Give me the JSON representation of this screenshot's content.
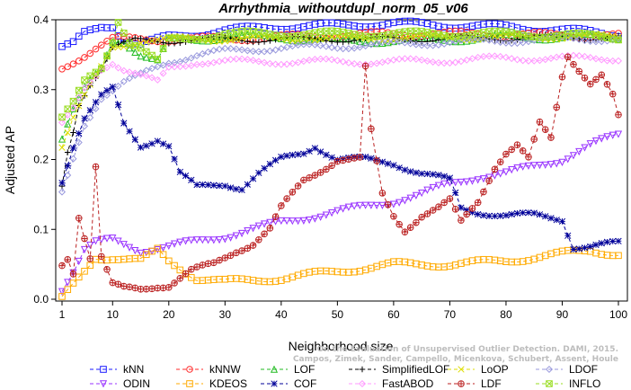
{
  "chart_data": {
    "type": "line",
    "title": "Arrhythmia_withoutdupl_norm_05_v06",
    "xlabel": "Neighborhood size",
    "ylabel": "Adjusted AP",
    "xlim": [
      1,
      100
    ],
    "ylim": [
      0.0,
      0.4
    ],
    "xticks": [
      1,
      10,
      20,
      30,
      40,
      50,
      60,
      70,
      80,
      90,
      100
    ],
    "yticks": [
      0.0,
      0.1,
      0.2,
      0.3,
      0.4
    ],
    "watermark": [
      "Campos, Zimek, Sander, Campello, Micenkova, Schubert, Assent, Houle",
      "On the Evaluation of Unsupervised Outlier Detection. DAMI, 2015."
    ],
    "legend_position": "bottom",
    "series": [
      {
        "name": "kNN",
        "color": "#1a1aff",
        "marker": "square",
        "dash": "4,3",
        "x_start": 1,
        "x_end": 100,
        "keypoints": [
          [
            1,
            0.36
          ],
          [
            3,
            0.365
          ],
          [
            5,
            0.38
          ],
          [
            8,
            0.39
          ],
          [
            10,
            0.392
          ],
          [
            12,
            0.37
          ],
          [
            15,
            0.365
          ],
          [
            20,
            0.375
          ],
          [
            25,
            0.38
          ],
          [
            30,
            0.385
          ],
          [
            40,
            0.39
          ],
          [
            50,
            0.392
          ],
          [
            60,
            0.395
          ],
          [
            70,
            0.392
          ],
          [
            80,
            0.39
          ],
          [
            90,
            0.385
          ],
          [
            100,
            0.38
          ]
        ]
      },
      {
        "name": "kNNW",
        "color": "#ff2a2a",
        "marker": "circle",
        "dash": "4,3",
        "x_start": 1,
        "x_end": 100,
        "keypoints": [
          [
            1,
            0.33
          ],
          [
            4,
            0.345
          ],
          [
            7,
            0.36
          ],
          [
            10,
            0.372
          ],
          [
            20,
            0.372
          ],
          [
            30,
            0.373
          ],
          [
            40,
            0.375
          ],
          [
            50,
            0.378
          ],
          [
            60,
            0.38
          ],
          [
            70,
            0.38
          ],
          [
            80,
            0.379
          ],
          [
            90,
            0.378
          ],
          [
            100,
            0.377
          ]
        ]
      },
      {
        "name": "LOF",
        "color": "#22bb22",
        "marker": "triangle",
        "dash": "4,3",
        "x_start": 1,
        "x_end": 100,
        "keypoints": [
          [
            1,
            0.23
          ],
          [
            3,
            0.27
          ],
          [
            5,
            0.3
          ],
          [
            8,
            0.33
          ],
          [
            10,
            0.37
          ],
          [
            12,
            0.37
          ],
          [
            15,
            0.35
          ],
          [
            18,
            0.34
          ],
          [
            20,
            0.37
          ],
          [
            30,
            0.375
          ],
          [
            40,
            0.375
          ],
          [
            50,
            0.37
          ],
          [
            60,
            0.37
          ],
          [
            70,
            0.372
          ],
          [
            80,
            0.375
          ],
          [
            90,
            0.375
          ],
          [
            100,
            0.375
          ]
        ]
      },
      {
        "name": "SimplifiedLOF",
        "color": "#000000",
        "marker": "plus",
        "dash": "4,3",
        "x_start": 1,
        "x_end": 100,
        "keypoints": [
          [
            1,
            0.16
          ],
          [
            2,
            0.21
          ],
          [
            3,
            0.24
          ],
          [
            4,
            0.28
          ],
          [
            6,
            0.31
          ],
          [
            8,
            0.33
          ],
          [
            10,
            0.36
          ],
          [
            14,
            0.37
          ],
          [
            20,
            0.37
          ],
          [
            30,
            0.372
          ],
          [
            40,
            0.372
          ],
          [
            50,
            0.372
          ],
          [
            60,
            0.372
          ],
          [
            70,
            0.373
          ],
          [
            80,
            0.374
          ],
          [
            90,
            0.375
          ],
          [
            100,
            0.375
          ]
        ]
      },
      {
        "name": "LoOP",
        "color": "#dddd00",
        "marker": "x",
        "dash": "4,3",
        "x_start": 1,
        "x_end": 100,
        "keypoints": [
          [
            1,
            0.22
          ],
          [
            3,
            0.26
          ],
          [
            5,
            0.29
          ],
          [
            8,
            0.33
          ],
          [
            10,
            0.36
          ],
          [
            15,
            0.37
          ],
          [
            20,
            0.372
          ],
          [
            30,
            0.373
          ],
          [
            40,
            0.373
          ],
          [
            50,
            0.373
          ],
          [
            60,
            0.374
          ],
          [
            70,
            0.375
          ],
          [
            80,
            0.375
          ],
          [
            90,
            0.376
          ],
          [
            100,
            0.376
          ]
        ]
      },
      {
        "name": "LDOF",
        "color": "#9999dd",
        "marker": "diamond",
        "dash": "4,3",
        "x_start": 1,
        "x_end": 100,
        "keypoints": [
          [
            1,
            0.15
          ],
          [
            3,
            0.2
          ],
          [
            5,
            0.25
          ],
          [
            8,
            0.29
          ],
          [
            10,
            0.3
          ],
          [
            12,
            0.31
          ],
          [
            15,
            0.32
          ],
          [
            20,
            0.34
          ],
          [
            25,
            0.35
          ],
          [
            30,
            0.355
          ],
          [
            40,
            0.36
          ],
          [
            50,
            0.362
          ],
          [
            60,
            0.365
          ],
          [
            70,
            0.368
          ],
          [
            80,
            0.37
          ],
          [
            90,
            0.372
          ],
          [
            100,
            0.373
          ]
        ]
      },
      {
        "name": "ODIN",
        "color": "#9933ff",
        "marker": "down-triangle",
        "dash": "4,3",
        "x_start": 1,
        "x_end": 100,
        "keypoints": [
          [
            1,
            0.015
          ],
          [
            3,
            0.04
          ],
          [
            5,
            0.07
          ],
          [
            7,
            0.08
          ],
          [
            10,
            0.085
          ],
          [
            15,
            0.07
          ],
          [
            20,
            0.075
          ],
          [
            30,
            0.09
          ],
          [
            40,
            0.11
          ],
          [
            50,
            0.125
          ],
          [
            60,
            0.14
          ],
          [
            65,
            0.15
          ],
          [
            70,
            0.165
          ],
          [
            75,
            0.175
          ],
          [
            80,
            0.18
          ],
          [
            85,
            0.19
          ],
          [
            90,
            0.2
          ],
          [
            95,
            0.22
          ],
          [
            100,
            0.235
          ]
        ]
      },
      {
        "name": "KDEOS",
        "color": "#ffaa00",
        "marker": "square",
        "dash": "4,3",
        "x_start": 1,
        "x_end": 100,
        "keypoints": [
          [
            1,
            0.0
          ],
          [
            3,
            0.02
          ],
          [
            5,
            0.04
          ],
          [
            7,
            0.06
          ],
          [
            10,
            0.06
          ],
          [
            15,
            0.055
          ],
          [
            18,
            0.07
          ],
          [
            20,
            0.055
          ],
          [
            25,
            0.03
          ],
          [
            30,
            0.025
          ],
          [
            40,
            0.03
          ],
          [
            50,
            0.04
          ],
          [
            60,
            0.05
          ],
          [
            70,
            0.05
          ],
          [
            80,
            0.055
          ],
          [
            90,
            0.065
          ],
          [
            95,
            0.07
          ],
          [
            100,
            0.065
          ]
        ]
      },
      {
        "name": "COF",
        "color": "#000099",
        "marker": "star",
        "dash": "4,3",
        "x_start": 1,
        "x_end": 100,
        "keypoints": [
          [
            1,
            0.17
          ],
          [
            3,
            0.22
          ],
          [
            5,
            0.26
          ],
          [
            8,
            0.29
          ],
          [
            10,
            0.3
          ],
          [
            12,
            0.25
          ],
          [
            15,
            0.22
          ],
          [
            18,
            0.23
          ],
          [
            20,
            0.22
          ],
          [
            22,
            0.18
          ],
          [
            25,
            0.16
          ],
          [
            30,
            0.165
          ],
          [
            33,
            0.16
          ],
          [
            36,
            0.18
          ],
          [
            40,
            0.2
          ],
          [
            44,
            0.21
          ],
          [
            46,
            0.22
          ],
          [
            50,
            0.2
          ],
          [
            55,
            0.2
          ],
          [
            60,
            0.195
          ],
          [
            65,
            0.18
          ],
          [
            70,
            0.17
          ],
          [
            72,
            0.13
          ],
          [
            75,
            0.125
          ],
          [
            80,
            0.12
          ],
          [
            85,
            0.12
          ],
          [
            90,
            0.115
          ],
          [
            92,
            0.075
          ],
          [
            95,
            0.075
          ],
          [
            100,
            0.08
          ]
        ]
      },
      {
        "name": "FastABOD",
        "color": "#ff99ff",
        "marker": "diamond",
        "dash": "4,3",
        "x_start": 1,
        "x_end": 100,
        "keypoints": [
          [
            1,
            0.25
          ],
          [
            3,
            0.27
          ],
          [
            5,
            0.3
          ],
          [
            8,
            0.33
          ],
          [
            10,
            0.34
          ],
          [
            12,
            0.33
          ],
          [
            15,
            0.32
          ],
          [
            18,
            0.31
          ],
          [
            20,
            0.33
          ],
          [
            25,
            0.34
          ],
          [
            30,
            0.34
          ],
          [
            40,
            0.34
          ],
          [
            50,
            0.34
          ],
          [
            60,
            0.34
          ],
          [
            70,
            0.342
          ],
          [
            80,
            0.345
          ],
          [
            90,
            0.345
          ],
          [
            100,
            0.345
          ]
        ]
      },
      {
        "name": "LDF",
        "color": "#bb2222",
        "marker": "circle-plus",
        "dash": "4,3",
        "x_start": 1,
        "x_end": 100,
        "keypoints": [
          [
            1,
            0.05
          ],
          [
            2,
            0.06
          ],
          [
            3,
            0.04
          ],
          [
            4,
            0.12
          ],
          [
            5,
            0.09
          ],
          [
            6,
            0.06
          ],
          [
            7,
            0.19
          ],
          [
            8,
            0.06
          ],
          [
            10,
            0.02
          ],
          [
            12,
            0.015
          ],
          [
            15,
            0.015
          ],
          [
            18,
            0.02
          ],
          [
            20,
            0.02
          ],
          [
            24,
            0.04
          ],
          [
            28,
            0.05
          ],
          [
            32,
            0.07
          ],
          [
            35,
            0.08
          ],
          [
            38,
            0.1
          ],
          [
            40,
            0.13
          ],
          [
            44,
            0.17
          ],
          [
            48,
            0.19
          ],
          [
            50,
            0.2
          ],
          [
            52,
            0.2
          ],
          [
            54,
            0.2
          ],
          [
            55,
            0.33
          ],
          [
            56,
            0.24
          ],
          [
            58,
            0.15
          ],
          [
            60,
            0.12
          ],
          [
            62,
            0.1
          ],
          [
            65,
            0.12
          ],
          [
            68,
            0.13
          ],
          [
            70,
            0.14
          ],
          [
            72,
            0.11
          ],
          [
            75,
            0.14
          ],
          [
            78,
            0.19
          ],
          [
            80,
            0.21
          ],
          [
            82,
            0.22
          ],
          [
            84,
            0.2
          ],
          [
            86,
            0.25
          ],
          [
            88,
            0.23
          ],
          [
            90,
            0.32
          ],
          [
            91,
            0.35
          ],
          [
            93,
            0.33
          ],
          [
            95,
            0.31
          ],
          [
            97,
            0.32
          ],
          [
            99,
            0.29
          ],
          [
            100,
            0.26
          ]
        ]
      },
      {
        "name": "INFLO",
        "color": "#99dd22",
        "marker": "square-x",
        "dash": "4,3",
        "x_start": 1,
        "x_end": 100,
        "keypoints": [
          [
            1,
            0.26
          ],
          [
            3,
            0.28
          ],
          [
            5,
            0.31
          ],
          [
            8,
            0.33
          ],
          [
            10,
            0.37
          ],
          [
            11,
            0.4
          ],
          [
            13,
            0.37
          ],
          [
            15,
            0.36
          ],
          [
            18,
            0.34
          ],
          [
            20,
            0.37
          ],
          [
            30,
            0.38
          ],
          [
            40,
            0.38
          ],
          [
            50,
            0.38
          ],
          [
            60,
            0.38
          ],
          [
            70,
            0.38
          ],
          [
            80,
            0.38
          ],
          [
            90,
            0.378
          ],
          [
            100,
            0.375
          ]
        ]
      }
    ]
  }
}
